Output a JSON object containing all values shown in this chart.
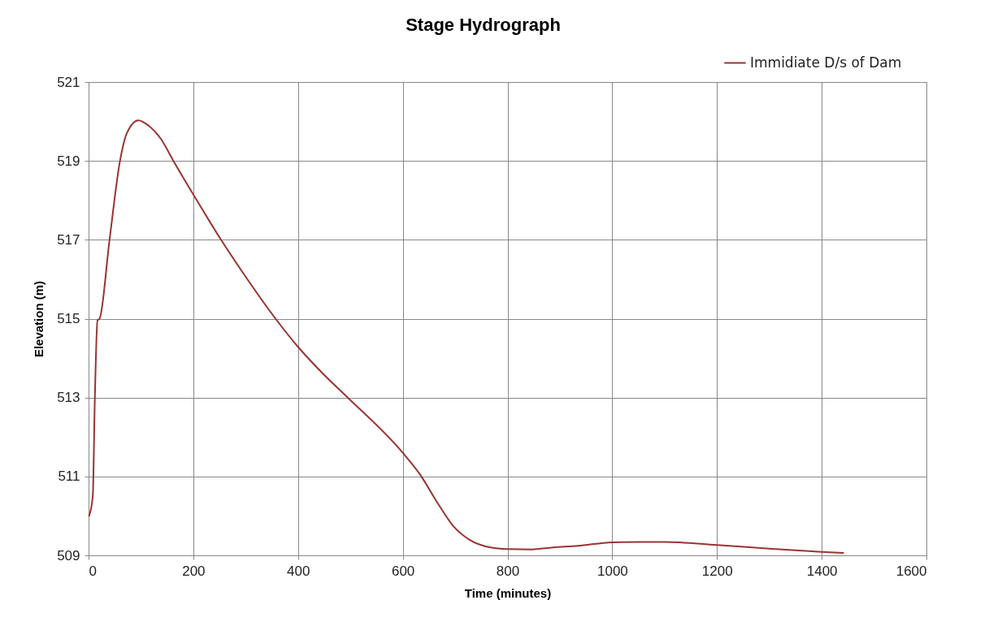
{
  "chart_data": {
    "type": "line",
    "title": "Stage Hydrograph",
    "xlabel": "Time (minutes)",
    "ylabel": "Elevation (m)",
    "xlim": [
      0,
      1600
    ],
    "xticks": [
      0,
      200,
      400,
      600,
      800,
      1000,
      1200,
      1400,
      1600
    ],
    "ylim": [
      509,
      521
    ],
    "yticks": [
      509,
      511,
      513,
      515,
      517,
      519,
      521
    ],
    "grid": true,
    "legend": "top right",
    "marker": "none",
    "line_style": "solid",
    "series": [
      {
        "name": "Immidiate D/s of Dam",
        "color": "#993333",
        "x": [
          1,
          8,
          12,
          17,
          21,
          40,
          60,
          73,
          95,
          114,
          138,
          162,
          200,
          253,
          298,
          357,
          399,
          448,
          495,
          600,
          634,
          665,
          696,
          727,
          768,
          800,
          846,
          887,
          934,
          1000,
          1059,
          1100,
          1200,
          1300,
          1400,
          1441
        ],
        "values": [
          510.0,
          510.5,
          513.0,
          514.96,
          515.0,
          517.0,
          519.0,
          519.7,
          520.03,
          519.9,
          519.56,
          519.0,
          518.15,
          517.0,
          516.1,
          515.0,
          514.3,
          513.6,
          513.0,
          511.6,
          511.03,
          510.36,
          509.75,
          509.4,
          509.2,
          509.16,
          509.15,
          509.2,
          509.24,
          509.33,
          509.34,
          509.34,
          509.26,
          509.17,
          509.09,
          509.06
        ]
      }
    ]
  }
}
